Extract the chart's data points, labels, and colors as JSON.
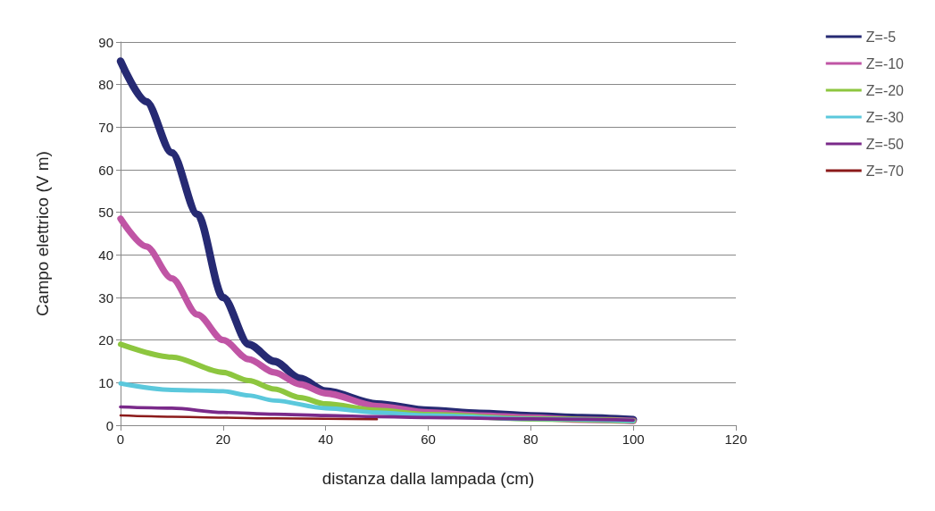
{
  "chart_data": {
    "type": "line",
    "xlabel": "distanza dalla lampada (cm)",
    "ylabel": "Campo elettrico (V m)",
    "xlim": [
      0,
      120
    ],
    "xticks": [
      0,
      20,
      40,
      60,
      80,
      100,
      120
    ],
    "ylim": [
      0,
      90
    ],
    "yticks": [
      0,
      10,
      20,
      30,
      40,
      50,
      60,
      70,
      80,
      90
    ],
    "grid": "y",
    "legend": "top right",
    "marker": "none",
    "line_style": "solid",
    "series": [
      {
        "name": "Z=-5",
        "color": "#262a73",
        "x": [
          0,
          5,
          10,
          15,
          20,
          25,
          30,
          35,
          40,
          50,
          60,
          70,
          80,
          90,
          100
        ],
        "values": [
          85.5,
          76,
          64,
          49.5,
          30,
          19,
          15,
          11,
          8,
          5,
          3.5,
          2.8,
          2.2,
          1.8,
          1.3
        ]
      },
      {
        "name": "Z=-10",
        "color": "#c055a5",
        "x": [
          0,
          5,
          10,
          15,
          20,
          25,
          30,
          35,
          40,
          50,
          60,
          70,
          80,
          90,
          100
        ],
        "values": [
          48.5,
          42,
          34.5,
          26,
          20,
          15.5,
          12.4,
          9.6,
          7.5,
          4.5,
          3,
          2.3,
          1.8,
          1.3,
          1
        ]
      },
      {
        "name": "Z=-20",
        "color": "#8dc63f",
        "x": [
          0,
          10,
          20,
          25,
          30,
          35,
          40,
          50,
          60,
          80,
          100
        ],
        "values": [
          19,
          16,
          12.4,
          10.5,
          8.5,
          6.5,
          5,
          3.5,
          2.5,
          1.5,
          1
        ]
      },
      {
        "name": "Z=-30",
        "color": "#5bc8dc",
        "x": [
          0,
          10,
          20,
          25,
          30,
          40,
          50,
          60,
          80,
          100
        ],
        "values": [
          9.8,
          8.3,
          8,
          7,
          5.8,
          4,
          3,
          2.3,
          1.5,
          1
        ]
      },
      {
        "name": "Z=-50",
        "color": "#7a2a8a",
        "x": [
          0,
          10,
          20,
          30,
          40,
          50,
          60,
          80,
          100
        ],
        "values": [
          4.3,
          4,
          3,
          2.6,
          2.3,
          2,
          1.8,
          1.5,
          1.2
        ]
      },
      {
        "name": "Z=-70",
        "color": "#8b1a1a",
        "x": [
          0,
          10,
          20,
          30,
          40,
          50
        ],
        "values": [
          2.3,
          2,
          1.8,
          1.6,
          1.5,
          1.4
        ]
      }
    ]
  }
}
